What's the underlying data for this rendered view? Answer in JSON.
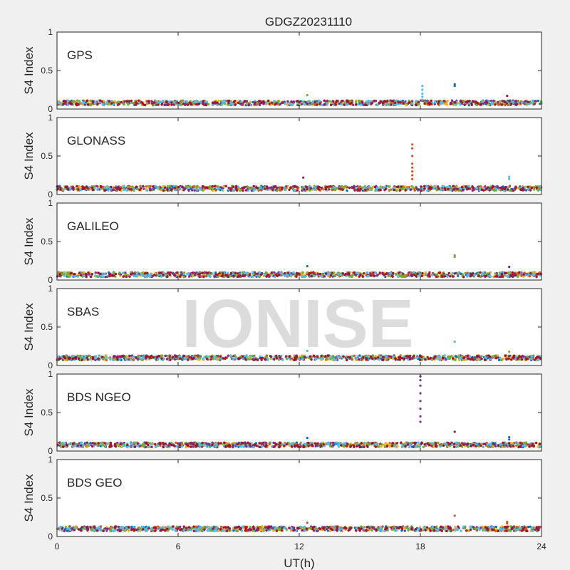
{
  "chart_data": {
    "type": "scatter",
    "title": "GDGZ20231110",
    "xlabel": "UT(h)",
    "ylabel": "S4 Index",
    "xlim": [
      0,
      24
    ],
    "ylim": [
      0,
      1
    ],
    "xticks": [
      0,
      6,
      12,
      18,
      24
    ],
    "yticks": [
      0,
      0.5,
      1
    ],
    "xtick_labels": [
      "0",
      "6",
      "12",
      "18",
      "24"
    ],
    "ytick_labels": [
      "0",
      "0.5",
      "1"
    ],
    "grid": false,
    "watermark": "IONISE",
    "series_colors": [
      "#0072BD",
      "#D95319",
      "#EDB120",
      "#7E2F8E",
      "#77AC30",
      "#4DBEEE",
      "#A2142F"
    ],
    "panels": [
      {
        "name": "GPS",
        "baseline": 0.08,
        "spikes": [
          {
            "x": 18.1,
            "values": [
              0.12,
              0.16,
              0.2,
              0.25,
              0.3
            ],
            "color": "#4DBEEE"
          },
          {
            "x": 19.7,
            "values": [
              0.3,
              0.32
            ],
            "color": "#0072BD"
          },
          {
            "x": 12.4,
            "values": [
              0.18
            ],
            "color": "#77AC30"
          },
          {
            "x": 22.3,
            "values": [
              0.17
            ],
            "color": "#A2142F"
          }
        ]
      },
      {
        "name": "GLONASS",
        "baseline": 0.08,
        "spikes": [
          {
            "x": 17.6,
            "values": [
              0.2,
              0.25,
              0.3,
              0.35,
              0.4,
              0.5,
              0.6,
              0.65
            ],
            "color": "#D95319"
          },
          {
            "x": 12.2,
            "values": [
              0.22
            ],
            "color": "#A2142F"
          },
          {
            "x": 22.4,
            "values": [
              0.2,
              0.23
            ],
            "color": "#4DBEEE"
          }
        ]
      },
      {
        "name": "GALILEO",
        "baseline": 0.07,
        "spikes": [
          {
            "x": 19.7,
            "values": [
              0.3,
              0.32
            ],
            "color": "#77AC30"
          },
          {
            "x": 12.4,
            "values": [
              0.18
            ],
            "color": "#0072BD"
          },
          {
            "x": 22.4,
            "values": [
              0.17
            ],
            "color": "#A2142F"
          }
        ]
      },
      {
        "name": "SBAS",
        "baseline": 0.1,
        "spikes": [
          {
            "x": 19.7,
            "values": [
              0.31
            ],
            "color": "#4DBEEE"
          },
          {
            "x": 12.4,
            "values": [
              0.19
            ],
            "color": "#4DBEEE"
          },
          {
            "x": 22.4,
            "values": [
              0.18
            ],
            "color": "#77AC30"
          }
        ]
      },
      {
        "name": "BDS NGEO",
        "baseline": 0.08,
        "spikes": [
          {
            "x": 18.0,
            "values": [
              0.38,
              0.45,
              0.55,
              0.65,
              0.75,
              0.85,
              0.92,
              0.97
            ],
            "color": "#7E2F8E"
          },
          {
            "x": 19.7,
            "values": [
              0.25
            ],
            "color": "#A2142F"
          },
          {
            "x": 12.4,
            "values": [
              0.17
            ],
            "color": "#0072BD"
          },
          {
            "x": 22.4,
            "values": [
              0.15,
              0.18
            ],
            "color": "#0072BD"
          }
        ]
      },
      {
        "name": "BDS GEO",
        "baseline": 0.1,
        "spikes": [
          {
            "x": 19.7,
            "values": [
              0.27
            ],
            "color": "#D95319"
          },
          {
            "x": 12.4,
            "values": [
              0.18
            ],
            "color": "#D95319"
          },
          {
            "x": 22.3,
            "values": [
              0.17,
              0.19
            ],
            "color": "#D95319"
          }
        ]
      }
    ]
  }
}
